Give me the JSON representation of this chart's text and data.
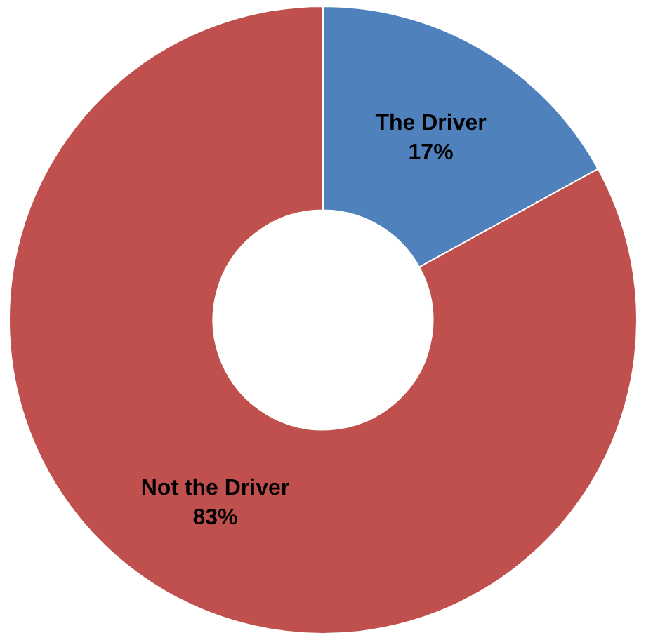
{
  "chart_data": {
    "type": "donut",
    "categories": [
      "The Driver",
      "Not the Driver"
    ],
    "values": [
      17,
      83
    ],
    "colors": [
      "#4f81bd",
      "#c0504d"
    ],
    "value_labels": [
      "17%",
      "83%"
    ],
    "legend": false
  }
}
